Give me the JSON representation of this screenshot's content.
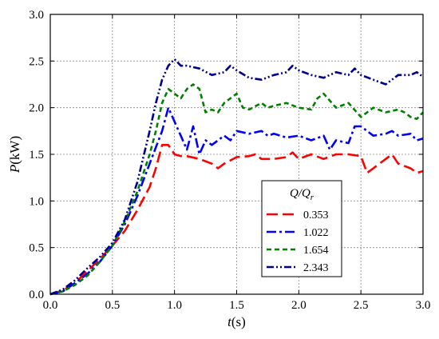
{
  "chart_data": {
    "type": "line",
    "xlabel_var": "t",
    "xlabel_unit": "(s)",
    "ylabel_var": "P",
    "ylabel_unit": "(kW)",
    "xlim": [
      0.0,
      3.0
    ],
    "ylim": [
      0.0,
      3.0
    ],
    "xticks": [
      "0.0",
      "0.5",
      "1.0",
      "1.5",
      "2.0",
      "2.5",
      "3.0"
    ],
    "yticks": [
      "0.0",
      "0.5",
      "1.0",
      "1.5",
      "2.0",
      "2.5",
      "3.0"
    ],
    "grid": true,
    "legend": {
      "title_main": "Q/Q",
      "title_sub": "r",
      "placement": "center-right"
    },
    "series": [
      {
        "name": "0.353",
        "color": "#ff0000",
        "dash": "long-dash",
        "points": [
          [
            0.0,
            0.0
          ],
          [
            0.1,
            0.04
          ],
          [
            0.2,
            0.12
          ],
          [
            0.3,
            0.25
          ],
          [
            0.4,
            0.38
          ],
          [
            0.5,
            0.52
          ],
          [
            0.6,
            0.68
          ],
          [
            0.7,
            0.9
          ],
          [
            0.8,
            1.15
          ],
          [
            0.85,
            1.35
          ],
          [
            0.9,
            1.6
          ],
          [
            0.95,
            1.6
          ],
          [
            1.0,
            1.5
          ],
          [
            1.05,
            1.48
          ],
          [
            1.1,
            1.48
          ],
          [
            1.2,
            1.45
          ],
          [
            1.3,
            1.4
          ],
          [
            1.35,
            1.35
          ],
          [
            1.4,
            1.4
          ],
          [
            1.5,
            1.47
          ],
          [
            1.6,
            1.48
          ],
          [
            1.65,
            1.5
          ],
          [
            1.7,
            1.45
          ],
          [
            1.8,
            1.45
          ],
          [
            1.9,
            1.47
          ],
          [
            1.95,
            1.52
          ],
          [
            2.0,
            1.45
          ],
          [
            2.1,
            1.5
          ],
          [
            2.2,
            1.45
          ],
          [
            2.3,
            1.5
          ],
          [
            2.4,
            1.5
          ],
          [
            2.5,
            1.48
          ],
          [
            2.55,
            1.3
          ],
          [
            2.6,
            1.35
          ],
          [
            2.7,
            1.45
          ],
          [
            2.75,
            1.5
          ],
          [
            2.8,
            1.4
          ],
          [
            2.9,
            1.35
          ],
          [
            2.95,
            1.3
          ],
          [
            3.0,
            1.32
          ]
        ]
      },
      {
        "name": "1.022",
        "color": "#0000ff",
        "dash": "dash-dot",
        "points": [
          [
            0.0,
            0.0
          ],
          [
            0.1,
            0.03
          ],
          [
            0.2,
            0.12
          ],
          [
            0.3,
            0.22
          ],
          [
            0.4,
            0.35
          ],
          [
            0.5,
            0.52
          ],
          [
            0.6,
            0.75
          ],
          [
            0.7,
            1.05
          ],
          [
            0.8,
            1.4
          ],
          [
            0.9,
            1.75
          ],
          [
            0.95,
            2.0
          ],
          [
            1.0,
            1.85
          ],
          [
            1.05,
            1.7
          ],
          [
            1.1,
            1.55
          ],
          [
            1.15,
            1.8
          ],
          [
            1.2,
            1.5
          ],
          [
            1.25,
            1.65
          ],
          [
            1.3,
            1.6
          ],
          [
            1.4,
            1.7
          ],
          [
            1.45,
            1.65
          ],
          [
            1.5,
            1.75
          ],
          [
            1.6,
            1.72
          ],
          [
            1.7,
            1.75
          ],
          [
            1.75,
            1.7
          ],
          [
            1.8,
            1.72
          ],
          [
            1.9,
            1.68
          ],
          [
            2.0,
            1.7
          ],
          [
            2.1,
            1.65
          ],
          [
            2.2,
            1.7
          ],
          [
            2.25,
            1.55
          ],
          [
            2.3,
            1.65
          ],
          [
            2.4,
            1.62
          ],
          [
            2.45,
            1.8
          ],
          [
            2.5,
            1.8
          ],
          [
            2.6,
            1.7
          ],
          [
            2.7,
            1.72
          ],
          [
            2.75,
            1.75
          ],
          [
            2.8,
            1.7
          ],
          [
            2.9,
            1.72
          ],
          [
            2.95,
            1.65
          ],
          [
            3.0,
            1.67
          ]
        ]
      },
      {
        "name": "1.654",
        "color": "#008000",
        "dash": "short-dash",
        "points": [
          [
            0.0,
            0.0
          ],
          [
            0.1,
            0.03
          ],
          [
            0.2,
            0.1
          ],
          [
            0.3,
            0.2
          ],
          [
            0.4,
            0.35
          ],
          [
            0.5,
            0.52
          ],
          [
            0.6,
            0.78
          ],
          [
            0.7,
            1.1
          ],
          [
            0.8,
            1.5
          ],
          [
            0.85,
            1.75
          ],
          [
            0.9,
            2.05
          ],
          [
            0.95,
            2.2
          ],
          [
            1.0,
            2.15
          ],
          [
            1.05,
            2.1
          ],
          [
            1.1,
            2.2
          ],
          [
            1.15,
            2.25
          ],
          [
            1.2,
            2.2
          ],
          [
            1.25,
            1.95
          ],
          [
            1.3,
            1.98
          ],
          [
            1.35,
            1.95
          ],
          [
            1.4,
            2.05
          ],
          [
            1.5,
            2.15
          ],
          [
            1.55,
            2.0
          ],
          [
            1.6,
            1.98
          ],
          [
            1.7,
            2.05
          ],
          [
            1.75,
            2.0
          ],
          [
            1.8,
            2.02
          ],
          [
            1.9,
            2.05
          ],
          [
            2.0,
            2.0
          ],
          [
            2.1,
            1.98
          ],
          [
            2.15,
            2.1
          ],
          [
            2.2,
            2.15
          ],
          [
            2.3,
            2.0
          ],
          [
            2.4,
            2.05
          ],
          [
            2.5,
            1.9
          ],
          [
            2.6,
            2.0
          ],
          [
            2.7,
            1.95
          ],
          [
            2.8,
            1.98
          ],
          [
            2.85,
            1.95
          ],
          [
            2.9,
            1.9
          ],
          [
            2.95,
            1.88
          ],
          [
            3.0,
            1.95
          ]
        ]
      },
      {
        "name": "2.343",
        "color": "#00008b",
        "dash": "dash-dot-dot",
        "points": [
          [
            0.0,
            0.0
          ],
          [
            0.1,
            0.05
          ],
          [
            0.2,
            0.15
          ],
          [
            0.3,
            0.28
          ],
          [
            0.4,
            0.4
          ],
          [
            0.5,
            0.55
          ],
          [
            0.6,
            0.8
          ],
          [
            0.7,
            1.2
          ],
          [
            0.8,
            1.75
          ],
          [
            0.85,
            2.05
          ],
          [
            0.9,
            2.3
          ],
          [
            0.95,
            2.45
          ],
          [
            1.0,
            2.52
          ],
          [
            1.05,
            2.45
          ],
          [
            1.1,
            2.45
          ],
          [
            1.2,
            2.42
          ],
          [
            1.3,
            2.35
          ],
          [
            1.4,
            2.38
          ],
          [
            1.45,
            2.45
          ],
          [
            1.5,
            2.4
          ],
          [
            1.6,
            2.32
          ],
          [
            1.7,
            2.3
          ],
          [
            1.8,
            2.35
          ],
          [
            1.9,
            2.38
          ],
          [
            1.95,
            2.45
          ],
          [
            2.0,
            2.4
          ],
          [
            2.1,
            2.35
          ],
          [
            2.2,
            2.32
          ],
          [
            2.3,
            2.38
          ],
          [
            2.4,
            2.35
          ],
          [
            2.45,
            2.42
          ],
          [
            2.5,
            2.35
          ],
          [
            2.6,
            2.3
          ],
          [
            2.7,
            2.25
          ],
          [
            2.8,
            2.35
          ],
          [
            2.9,
            2.35
          ],
          [
            2.95,
            2.38
          ],
          [
            3.0,
            2.33
          ]
        ]
      }
    ]
  }
}
